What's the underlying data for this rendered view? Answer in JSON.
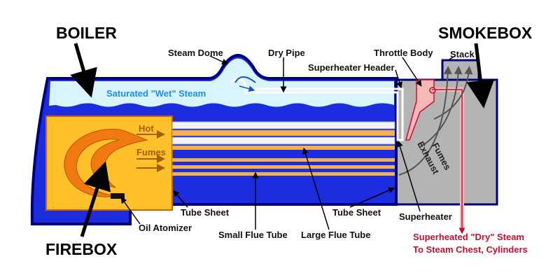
{
  "labels": {
    "boiler": "BOILER",
    "smokebox": "SMOKEBOX",
    "firebox": "FIREBOX",
    "steam_dome": "Steam Dome",
    "dry_pipe": "Dry Pipe",
    "throttle_body": "Throttle Body",
    "stack": "Stack",
    "superheater_header": "Superheater Header",
    "wet_steam": "Saturated \"Wet\" Steam",
    "hot": "Hot",
    "fumes": "Fumes",
    "exhaust_1": "Exhaust",
    "exhaust_2": "Fumes",
    "tube_sheet_left": "Tube Sheet",
    "tube_sheet_right": "Tube Sheet",
    "superheater": "Superheater",
    "oil_atomizer": "Oil Atomizer",
    "small_flue_tube": "Small Flue Tube",
    "large_flue_tube": "Large Flue Tube",
    "dry_steam_1": "Superheated \"Dry\" Steam",
    "dry_steam_2": "To Steam Chest, Cylinders"
  }
}
